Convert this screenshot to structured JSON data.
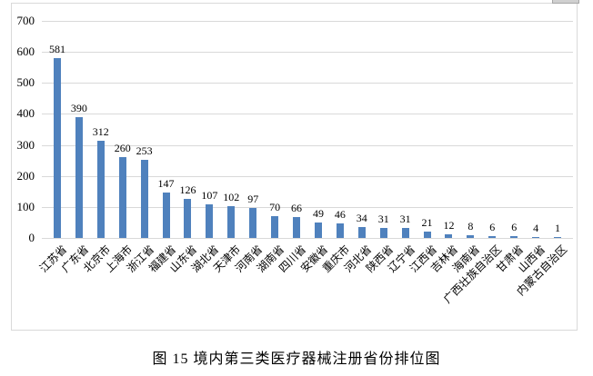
{
  "chart_data": {
    "type": "bar",
    "title": "图 15 境内第三类医疗器械注册省份排位图",
    "categories": [
      "江苏省",
      "广东省",
      "北京市",
      "上海市",
      "浙江省",
      "福建省",
      "山东省",
      "湖北省",
      "天津市",
      "河南省",
      "湖南省",
      "四川省",
      "安徽省",
      "重庆市",
      "河北省",
      "陕西省",
      "辽宁省",
      "江西省",
      "吉林省",
      "海南省",
      "广西壮族自治区",
      "甘肃省",
      "山西省",
      "内蒙古自治区"
    ],
    "values": [
      581,
      390,
      312,
      260,
      253,
      147,
      126,
      107,
      102,
      97,
      70,
      66,
      49,
      46,
      34,
      31,
      31,
      21,
      12,
      8,
      6,
      6,
      4,
      1
    ],
    "xlabel": "",
    "ylabel": "",
    "ylim": [
      0,
      700
    ],
    "yticks": [
      0,
      100,
      200,
      300,
      400,
      500,
      600,
      700
    ],
    "grid": true,
    "legend_position": "none",
    "data_labels": true,
    "bar_color": "#4F81BD",
    "gridline_color": "#D9D9D9",
    "frame_color": "#D9D9D9",
    "text_color": "#000000"
  }
}
